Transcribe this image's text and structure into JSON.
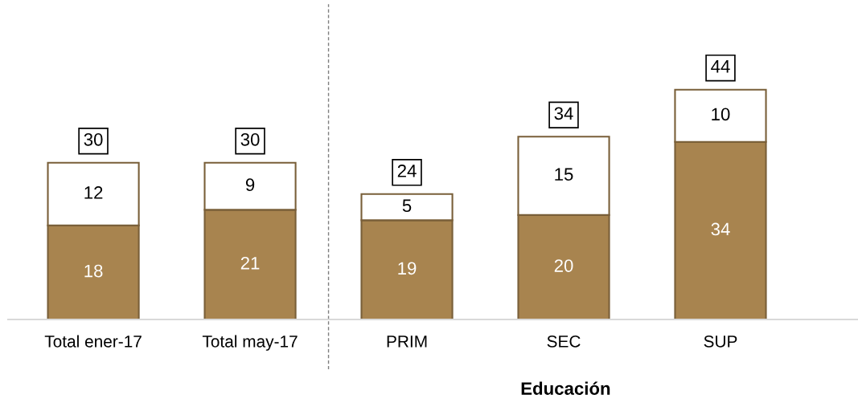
{
  "chart_data": {
    "type": "bar",
    "stacked": true,
    "xlabel": "Educación",
    "categories": [
      "Total ener-17",
      "Total may-17",
      "PRIM",
      "SEC",
      "SUP"
    ],
    "series": [
      {
        "color": "#a8844f",
        "values": [
          18,
          21,
          19,
          20,
          34
        ]
      },
      {
        "color": "#ffffff",
        "values": [
          12,
          9,
          5,
          15,
          10
        ]
      }
    ],
    "data_labels": true,
    "totals": [
      "30",
      "30",
      "24",
      "34",
      "44"
    ],
    "tick_labels": "x",
    "grid": false,
    "legend": false
  }
}
